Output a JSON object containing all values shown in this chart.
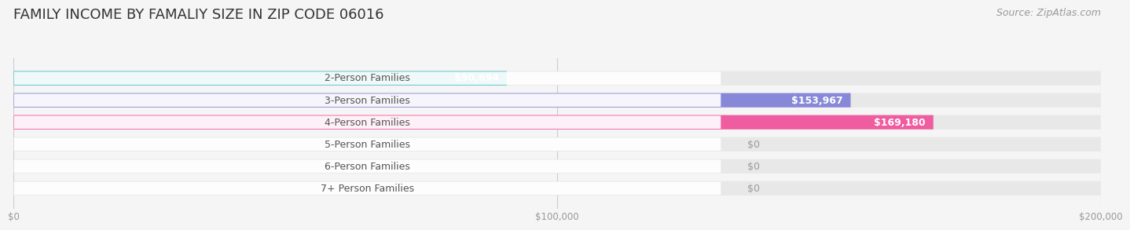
{
  "title": "FAMILY INCOME BY FAMALIY SIZE IN ZIP CODE 06016",
  "source": "Source: ZipAtlas.com",
  "categories": [
    "2-Person Families",
    "3-Person Families",
    "4-Person Families",
    "5-Person Families",
    "6-Person Families",
    "7+ Person Families"
  ],
  "values": [
    90694,
    153967,
    169180,
    0,
    0,
    0
  ],
  "bar_colors": [
    "#4BBFBF",
    "#8888D8",
    "#F05CA0",
    "#F5C890",
    "#F09898",
    "#90B8E8"
  ],
  "value_labels": [
    "$90,694",
    "$153,967",
    "$169,180",
    "$0",
    "$0",
    "$0"
  ],
  "xlim": [
    0,
    200000
  ],
  "xticks": [
    0,
    100000,
    200000
  ],
  "xtick_labels": [
    "$0",
    "$100,000",
    "$200,000"
  ],
  "background_color": "#f5f5f5",
  "bar_bg_color": "#e8e8e8",
  "title_fontsize": 13,
  "source_fontsize": 9,
  "label_fontsize": 9,
  "value_fontsize": 9
}
